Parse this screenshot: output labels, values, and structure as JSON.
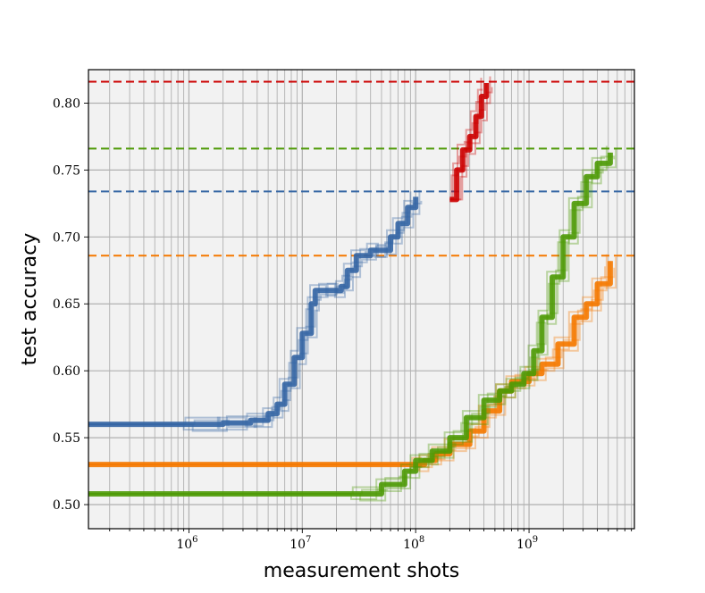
{
  "chart_data": {
    "type": "line",
    "xscale": "log",
    "xlabel": "measurement shots",
    "ylabel": "test accuracy",
    "xlim": [
      130000,
      8500000000
    ],
    "ylim": [
      0.482,
      0.825
    ],
    "grid": true,
    "x_major_ticks": [
      {
        "value": 1000000,
        "base": "10",
        "exp": "6"
      },
      {
        "value": 10000000,
        "base": "10",
        "exp": "7"
      },
      {
        "value": 100000000,
        "base": "10",
        "exp": "8"
      },
      {
        "value": 1000000000,
        "base": "10",
        "exp": "9"
      }
    ],
    "y_ticks": [
      "0.50",
      "0.55",
      "0.60",
      "0.65",
      "0.70",
      "0.75",
      "0.80"
    ],
    "reference_lines": [
      {
        "color": "#cc0000",
        "y": 0.816
      },
      {
        "color": "#4e9a06",
        "y": 0.766
      },
      {
        "color": "#3465a4",
        "y": 0.734
      },
      {
        "color": "#f57900",
        "y": 0.686
      }
    ],
    "series": [
      {
        "color": "#3465a4",
        "points": [
          [
            130000,
            0.56
          ],
          [
            1000000,
            0.56
          ],
          [
            2000000,
            0.561
          ],
          [
            3500000,
            0.563
          ],
          [
            5000000,
            0.568
          ],
          [
            6000000,
            0.575
          ],
          [
            7000000,
            0.59
          ],
          [
            8500000,
            0.61
          ],
          [
            10000000,
            0.628
          ],
          [
            12000000,
            0.65
          ],
          [
            13000000,
            0.66
          ],
          [
            18000000,
            0.66
          ],
          [
            22000000,
            0.663
          ],
          [
            25000000,
            0.675
          ],
          [
            30000000,
            0.686
          ],
          [
            40000000,
            0.69
          ],
          [
            50000000,
            0.69
          ],
          [
            60000000,
            0.7
          ],
          [
            70000000,
            0.71
          ],
          [
            85000000,
            0.722
          ],
          [
            100000000,
            0.73
          ]
        ]
      },
      {
        "color": "#f57900",
        "points": [
          [
            130000,
            0.53
          ],
          [
            100000000,
            0.53
          ],
          [
            120000000,
            0.533
          ],
          [
            150000000,
            0.538
          ],
          [
            200000000,
            0.545
          ],
          [
            300000000,
            0.555
          ],
          [
            400000000,
            0.57
          ],
          [
            550000000,
            0.585
          ],
          [
            700000000,
            0.592
          ],
          [
            1000000000,
            0.598
          ],
          [
            1300000000,
            0.605
          ],
          [
            1800000000,
            0.62
          ],
          [
            2500000000,
            0.64
          ],
          [
            3200000000,
            0.65
          ],
          [
            4000000000,
            0.665
          ],
          [
            5200000000,
            0.682
          ]
        ]
      },
      {
        "color": "#4e9a06",
        "points": [
          [
            130000,
            0.508
          ],
          [
            30000000,
            0.508
          ],
          [
            50000000,
            0.515
          ],
          [
            80000000,
            0.525
          ],
          [
            100000000,
            0.533
          ],
          [
            140000000,
            0.54
          ],
          [
            200000000,
            0.55
          ],
          [
            280000000,
            0.565
          ],
          [
            400000000,
            0.578
          ],
          [
            550000000,
            0.585
          ],
          [
            700000000,
            0.59
          ],
          [
            900000000,
            0.598
          ],
          [
            1100000000,
            0.615
          ],
          [
            1300000000,
            0.64
          ],
          [
            1600000000,
            0.67
          ],
          [
            2000000000,
            0.7
          ],
          [
            2500000000,
            0.725
          ],
          [
            3200000000,
            0.745
          ],
          [
            4000000000,
            0.755
          ],
          [
            5200000000,
            0.763
          ]
        ]
      },
      {
        "color": "#cc0000",
        "points": [
          [
            200000000,
            0.728
          ],
          [
            230000000,
            0.75
          ],
          [
            260000000,
            0.765
          ],
          [
            300000000,
            0.775
          ],
          [
            340000000,
            0.79
          ],
          [
            380000000,
            0.805
          ],
          [
            420000000,
            0.815
          ]
        ]
      }
    ]
  }
}
